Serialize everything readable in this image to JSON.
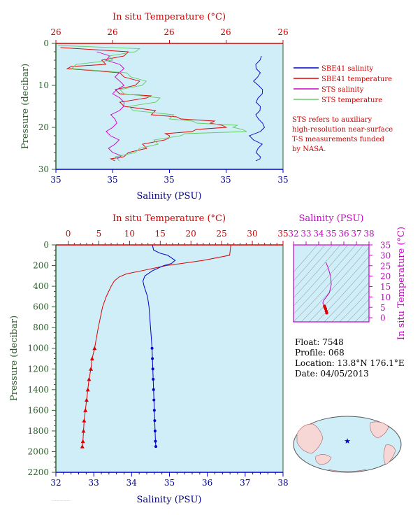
{
  "top_panel": {
    "temp_axis_label": "In situ Temperature (°C)",
    "temp_ticks": [
      "26",
      "26",
      "26",
      "26",
      "26"
    ],
    "sal_axis_label": "Salinity (PSU)",
    "sal_ticks": [
      "35",
      "35",
      "35",
      "35",
      "35"
    ],
    "pressure_label": "Pressure (decibar)",
    "pressure_ticks": [
      "0",
      "10",
      "20",
      "30"
    ]
  },
  "legend": {
    "items": [
      {
        "label": "SBE41 salinity",
        "color": "#0000cc"
      },
      {
        "label": "SBE41 temperature",
        "color": "#dd0000"
      },
      {
        "label": "STS salinity",
        "color": "#cc00cc"
      },
      {
        "label": "STS temperature",
        "color": "#66cc66"
      }
    ],
    "note_lines": [
      "STS refers to auxiliary",
      "high-resolution near-surface",
      "T-S measurements funded",
      "by NASA."
    ]
  },
  "main_panel": {
    "temp_axis_label": "In situ Temperature (°C)",
    "temp_ticks": [
      "0",
      "5",
      "10",
      "15",
      "20",
      "25",
      "30",
      "35"
    ],
    "sal_axis_label": "Salinity (PSU)",
    "sal_ticks": [
      "32",
      "33",
      "34",
      "35",
      "36",
      "37",
      "38"
    ],
    "pressure_label": "Pressure (decibar)",
    "pressure_ticks": [
      "0",
      "200",
      "400",
      "600",
      "800",
      "1000",
      "1200",
      "1400",
      "1600",
      "1800",
      "2000",
      "2200"
    ]
  },
  "ts_panel": {
    "sal_axis_label": "Salinity (PSU)",
    "sal_ticks": [
      "32",
      "33",
      "34",
      "35",
      "36",
      "37",
      "38"
    ],
    "temp_axis_label": "In situ Temperature (°C)",
    "temp_ticks": [
      "0",
      "5",
      "10",
      "15",
      "20",
      "25",
      "30",
      "35"
    ]
  },
  "float_info": {
    "float": "Float:  7548",
    "profile": "Profile:  068",
    "location": "Location:  13.8°N  176.1°E",
    "date": "Date:  04/05/2013"
  },
  "colors": {
    "plot_bg": "#cfeef8",
    "temperature": "#dd0000",
    "salinity": "#0000cc",
    "sts_salinity": "#cc00cc",
    "sts_temperature": "#66cc66"
  },
  "chart_data": [
    {
      "type": "line",
      "title": "",
      "ylabel": "Pressure (decibar)",
      "ylim": [
        30,
        0
      ],
      "series": [
        {
          "name": "SBE41 salinity",
          "y": [
            3,
            5,
            7,
            9,
            11,
            13,
            15,
            17,
            19,
            21,
            23,
            25,
            27,
            28
          ],
          "values": [
            0.905,
            0.88,
            0.9,
            0.87,
            0.91,
            0.89,
            0.9,
            0.88,
            0.91,
            0.9,
            0.87,
            0.89,
            0.9,
            0.88
          ]
        },
        {
          "name": "SBE41 temperature",
          "y": [
            1,
            3,
            5,
            6,
            8,
            10,
            12,
            13,
            15,
            17,
            18,
            19,
            20,
            21,
            22,
            23,
            25,
            27,
            28
          ],
          "values": [
            0.02,
            0.3,
            0.22,
            0.05,
            0.3,
            0.35,
            0.28,
            0.4,
            0.3,
            0.42,
            0.55,
            0.68,
            0.75,
            0.6,
            0.5,
            0.48,
            0.4,
            0.3,
            0.26
          ]
        },
        {
          "name": "STS salinity",
          "y": [
            2,
            4,
            6,
            8,
            10,
            12,
            14,
            16,
            18,
            20,
            22,
            24,
            26,
            27.5
          ],
          "values": [
            0.18,
            0.22,
            0.3,
            0.26,
            0.3,
            0.25,
            0.3,
            0.28,
            0.26,
            0.25,
            0.24,
            0.26,
            0.25,
            0.27
          ]
        },
        {
          "name": "STS temperature",
          "y": [
            0.5,
            2,
            4,
            6,
            8,
            10,
            12,
            14,
            16,
            18,
            19,
            20,
            21,
            22,
            24,
            26,
            28
          ],
          "values": [
            0.01,
            0.35,
            0.25,
            0.07,
            0.33,
            0.38,
            0.3,
            0.44,
            0.34,
            0.5,
            0.62,
            0.78,
            0.84,
            0.55,
            0.45,
            0.35,
            0.28
          ]
        }
      ]
    },
    {
      "type": "line",
      "title": "",
      "xlabel": "Salinity (PSU)",
      "ylabel": "Pressure (decibar)",
      "ylim": [
        2200,
        0
      ],
      "temperature_xlim": [
        -2,
        35
      ],
      "salinity_xlim": [
        32,
        38
      ],
      "series": [
        {
          "name": "Temperature",
          "pressure": [
            0,
            100,
            150,
            200,
            250,
            280,
            310,
            350,
            400,
            500,
            600,
            800,
            1000,
            1100,
            1200,
            1300,
            1400,
            1500,
            1600,
            1700,
            1800,
            1900,
            1950
          ],
          "values": [
            26.5,
            26.3,
            22,
            16,
            12,
            9.5,
            8.3,
            7.5,
            7,
            6.2,
            5.6,
            4.9,
            4.3,
            3.9,
            3.7,
            3.4,
            3.2,
            3.0,
            2.8,
            2.6,
            2.5,
            2.4,
            2.3
          ]
        },
        {
          "name": "Salinity",
          "pressure": [
            0,
            50,
            80,
            100,
            150,
            180,
            200,
            250,
            300,
            350,
            400,
            500,
            600,
            800,
            1000,
            1100,
            1200,
            1300,
            1400,
            1500,
            1600,
            1700,
            1800,
            1900,
            1950
          ],
          "values": [
            34.55,
            34.58,
            34.75,
            34.95,
            35.15,
            35.05,
            34.85,
            34.55,
            34.35,
            34.3,
            34.33,
            34.42,
            34.46,
            34.5,
            34.54,
            34.55,
            34.56,
            34.57,
            34.58,
            34.59,
            34.6,
            34.61,
            34.62,
            34.63,
            34.64
          ]
        }
      ]
    },
    {
      "type": "scatter",
      "title": "",
      "xlabel": "Salinity (PSU)",
      "ylabel": "In situ Temperature (°C)",
      "xlim": [
        32,
        38
      ],
      "ylim": [
        -2,
        35
      ],
      "series": [
        {
          "name": "T-S",
          "x": [
            34.55,
            34.6,
            34.75,
            34.95,
            35.0,
            34.85,
            34.55,
            34.4,
            34.33,
            34.42,
            34.46,
            34.5,
            34.55,
            34.6,
            34.64
          ],
          "y": [
            26.5,
            26.3,
            24,
            20,
            16,
            12,
            9.5,
            8.3,
            7,
            6.2,
            5.6,
            4.9,
            4.3,
            3.2,
            2.3
          ]
        }
      ]
    }
  ]
}
